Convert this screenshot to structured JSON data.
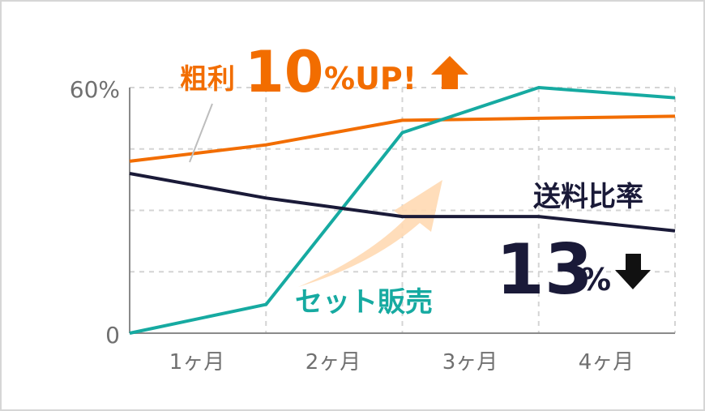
{
  "chart_data": {
    "type": "line",
    "categories": [
      "1ヶ月",
      "2ヶ月",
      "3ヶ月",
      "4ヶ月"
    ],
    "x": [
      0,
      1,
      2,
      3,
      4
    ],
    "ylim": [
      0,
      60
    ],
    "y_tick_labels": [
      "60%",
      "0"
    ],
    "grid": true,
    "series": [
      {
        "name": "粗利",
        "color": "#f26d00",
        "values": [
          42,
          46,
          52,
          52.5,
          53
        ]
      },
      {
        "name": "セット販売",
        "color": "#16aaa1",
        "values": [
          0,
          7,
          49,
          60,
          57.5
        ]
      },
      {
        "name": "送料比率",
        "color": "#1a1a38",
        "values": [
          39,
          33,
          28.5,
          28.5,
          25
        ]
      }
    ],
    "annotations": {
      "gross_profit": {
        "label": "粗利",
        "value": "10",
        "unit": "%UP!",
        "arrow": "up"
      },
      "shipping": {
        "label": "送料比率",
        "value": "13",
        "unit": "%",
        "arrow": "down"
      },
      "set_sales": {
        "label": "セット販売"
      }
    }
  }
}
